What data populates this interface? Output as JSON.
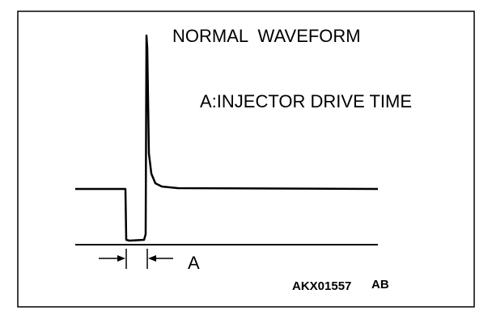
{
  "diagram": {
    "title": "NORMAL  WAVEFORM",
    "annotation": "A:INJECTOR DRIVE TIME",
    "dimension_label": "A",
    "figure_id": "AKX01557",
    "figure_suffix": "AB"
  }
}
